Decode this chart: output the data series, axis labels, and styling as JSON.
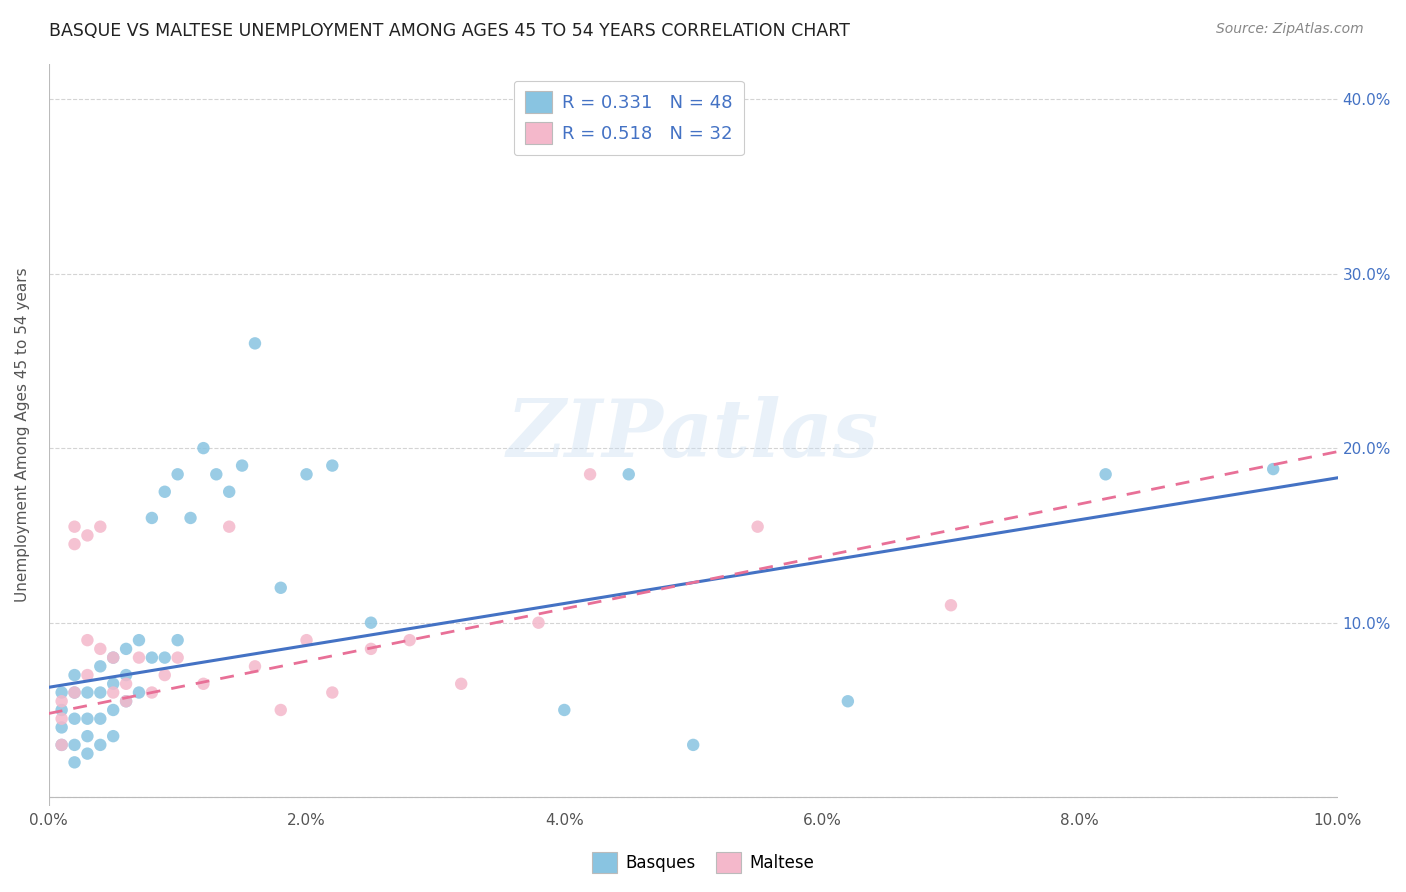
{
  "title": "BASQUE VS MALTESE UNEMPLOYMENT AMONG AGES 45 TO 54 YEARS CORRELATION CHART",
  "source": "Source: ZipAtlas.com",
  "ylabel": "Unemployment Among Ages 45 to 54 years",
  "xlim": [
    0.0,
    0.1
  ],
  "ylim": [
    -0.005,
    0.42
  ],
  "xticks": [
    0.0,
    0.02,
    0.04,
    0.06,
    0.08,
    0.1
  ],
  "yticks": [
    0.0,
    0.1,
    0.2,
    0.3,
    0.4
  ],
  "xtick_labels": [
    "0.0%",
    "2.0%",
    "4.0%",
    "6.0%",
    "8.0%",
    "10.0%"
  ],
  "ytick_labels_left": [
    "",
    "",
    "",
    "",
    ""
  ],
  "ytick_labels_right": [
    "",
    "10.0%",
    "20.0%",
    "30.0%",
    "40.0%"
  ],
  "basque_color": "#89c4e1",
  "maltese_color": "#f4b8cb",
  "basque_line_color": "#4472c4",
  "maltese_line_color": "#e87097",
  "legend_r_basque": "0.331",
  "legend_n_basque": "48",
  "legend_r_maltese": "0.518",
  "legend_n_maltese": "32",
  "basque_x": [
    0.001,
    0.001,
    0.001,
    0.001,
    0.002,
    0.002,
    0.002,
    0.002,
    0.002,
    0.003,
    0.003,
    0.003,
    0.003,
    0.004,
    0.004,
    0.004,
    0.004,
    0.005,
    0.005,
    0.005,
    0.005,
    0.006,
    0.006,
    0.006,
    0.007,
    0.007,
    0.008,
    0.008,
    0.009,
    0.009,
    0.01,
    0.01,
    0.011,
    0.012,
    0.013,
    0.014,
    0.015,
    0.016,
    0.018,
    0.02,
    0.022,
    0.025,
    0.04,
    0.045,
    0.05,
    0.062,
    0.082,
    0.095
  ],
  "basque_y": [
    0.06,
    0.05,
    0.04,
    0.03,
    0.07,
    0.06,
    0.045,
    0.03,
    0.02,
    0.06,
    0.045,
    0.035,
    0.025,
    0.075,
    0.06,
    0.045,
    0.03,
    0.08,
    0.065,
    0.05,
    0.035,
    0.085,
    0.07,
    0.055,
    0.09,
    0.06,
    0.16,
    0.08,
    0.175,
    0.08,
    0.185,
    0.09,
    0.16,
    0.2,
    0.185,
    0.175,
    0.19,
    0.26,
    0.12,
    0.185,
    0.19,
    0.1,
    0.05,
    0.185,
    0.03,
    0.055,
    0.185,
    0.188
  ],
  "maltese_x": [
    0.001,
    0.001,
    0.001,
    0.002,
    0.002,
    0.002,
    0.003,
    0.003,
    0.003,
    0.004,
    0.004,
    0.005,
    0.005,
    0.006,
    0.006,
    0.007,
    0.008,
    0.009,
    0.01,
    0.012,
    0.014,
    0.016,
    0.018,
    0.02,
    0.022,
    0.025,
    0.028,
    0.032,
    0.038,
    0.042,
    0.055,
    0.07
  ],
  "maltese_y": [
    0.055,
    0.045,
    0.03,
    0.155,
    0.145,
    0.06,
    0.15,
    0.09,
    0.07,
    0.155,
    0.085,
    0.08,
    0.06,
    0.065,
    0.055,
    0.08,
    0.06,
    0.07,
    0.08,
    0.065,
    0.155,
    0.075,
    0.05,
    0.09,
    0.06,
    0.085,
    0.09,
    0.065,
    0.1,
    0.185,
    0.155,
    0.11
  ],
  "basque_line_x0": 0.0,
  "basque_line_y0": 0.063,
  "basque_line_x1": 0.1,
  "basque_line_y1": 0.183,
  "maltese_line_x0": 0.0,
  "maltese_line_y0": 0.048,
  "maltese_line_x1": 0.1,
  "maltese_line_y1": 0.198,
  "watermark": "ZIPatlas",
  "background_color": "#ffffff",
  "grid_color": "#d0d0d0"
}
